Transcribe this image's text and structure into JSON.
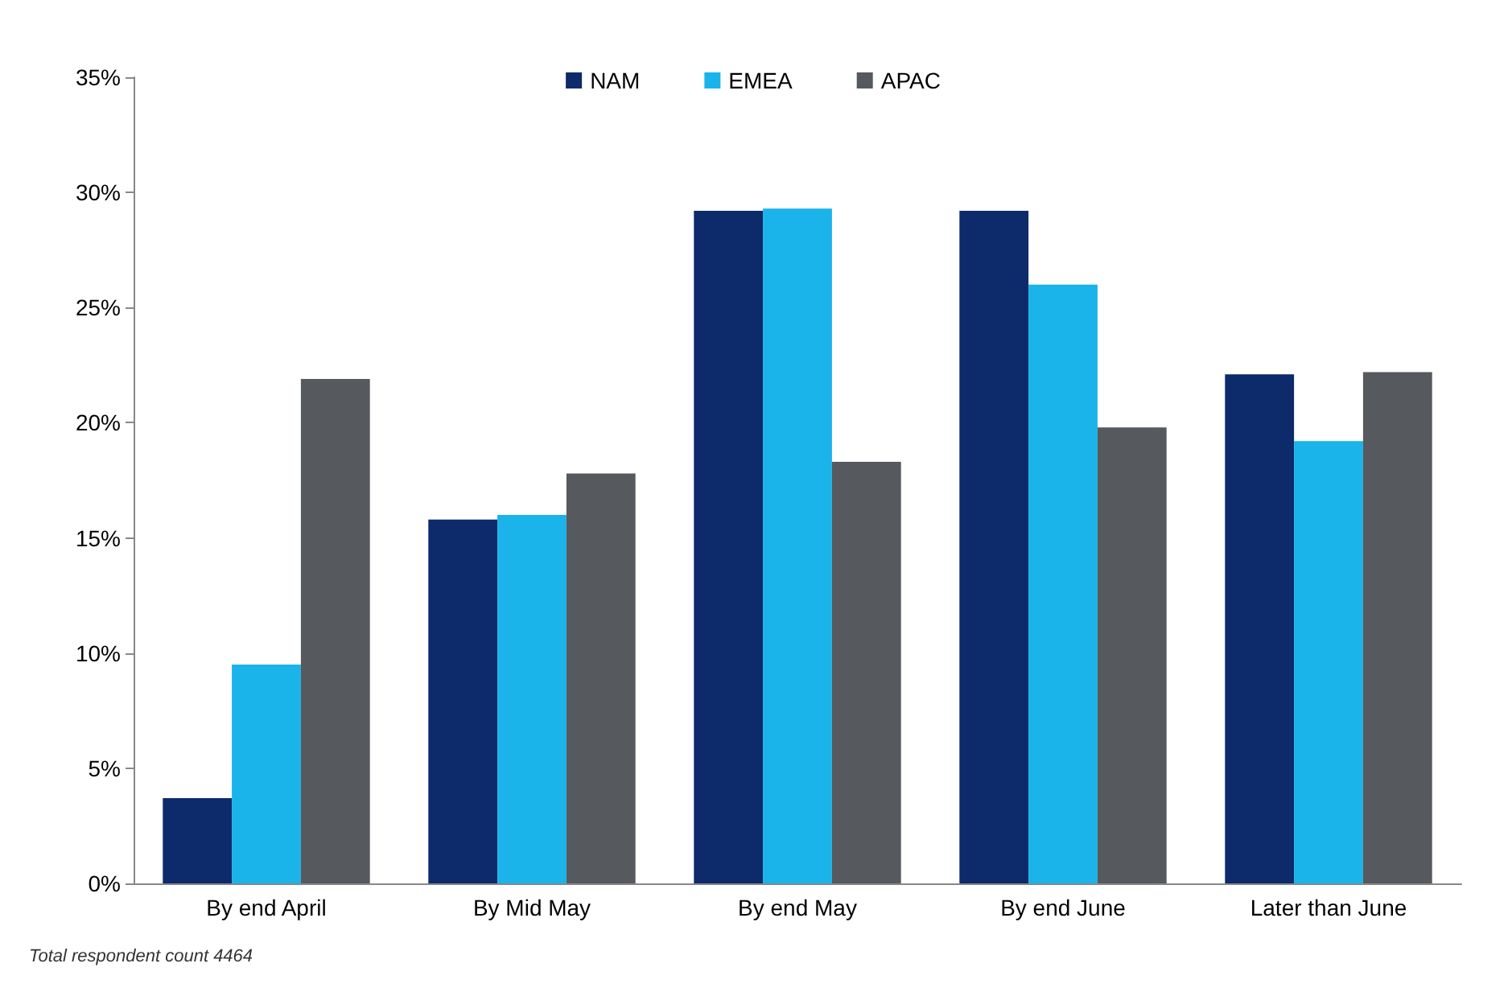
{
  "chart_data": {
    "type": "bar",
    "categories": [
      "By end April",
      "By Mid May",
      "By end May",
      "By end June",
      "Later than June"
    ],
    "series": [
      {
        "name": "NAM",
        "color": "#0d2a6b",
        "values": [
          3.7,
          15.8,
          29.2,
          29.2,
          22.1
        ]
      },
      {
        "name": "EMEA",
        "color": "#1ab3ea",
        "values": [
          9.5,
          16.0,
          29.3,
          26.0,
          19.2
        ]
      },
      {
        "name": "APAC",
        "color": "#56595e",
        "values": [
          21.9,
          17.8,
          18.3,
          19.8,
          22.2
        ]
      }
    ],
    "ylim": [
      0,
      35
    ],
    "yticks": [
      {
        "value": 0,
        "label": "0%"
      },
      {
        "value": 5,
        "label": "5%"
      },
      {
        "value": 10,
        "label": "10%"
      },
      {
        "value": 15,
        "label": "15%"
      },
      {
        "value": 20,
        "label": "20%"
      },
      {
        "value": 25,
        "label": "25%"
      },
      {
        "value": 30,
        "label": "30%"
      },
      {
        "value": 35,
        "label": "35%"
      }
    ],
    "legend": "top",
    "grid": false,
    "annotations": [
      "Total respondent count 4464"
    ]
  }
}
